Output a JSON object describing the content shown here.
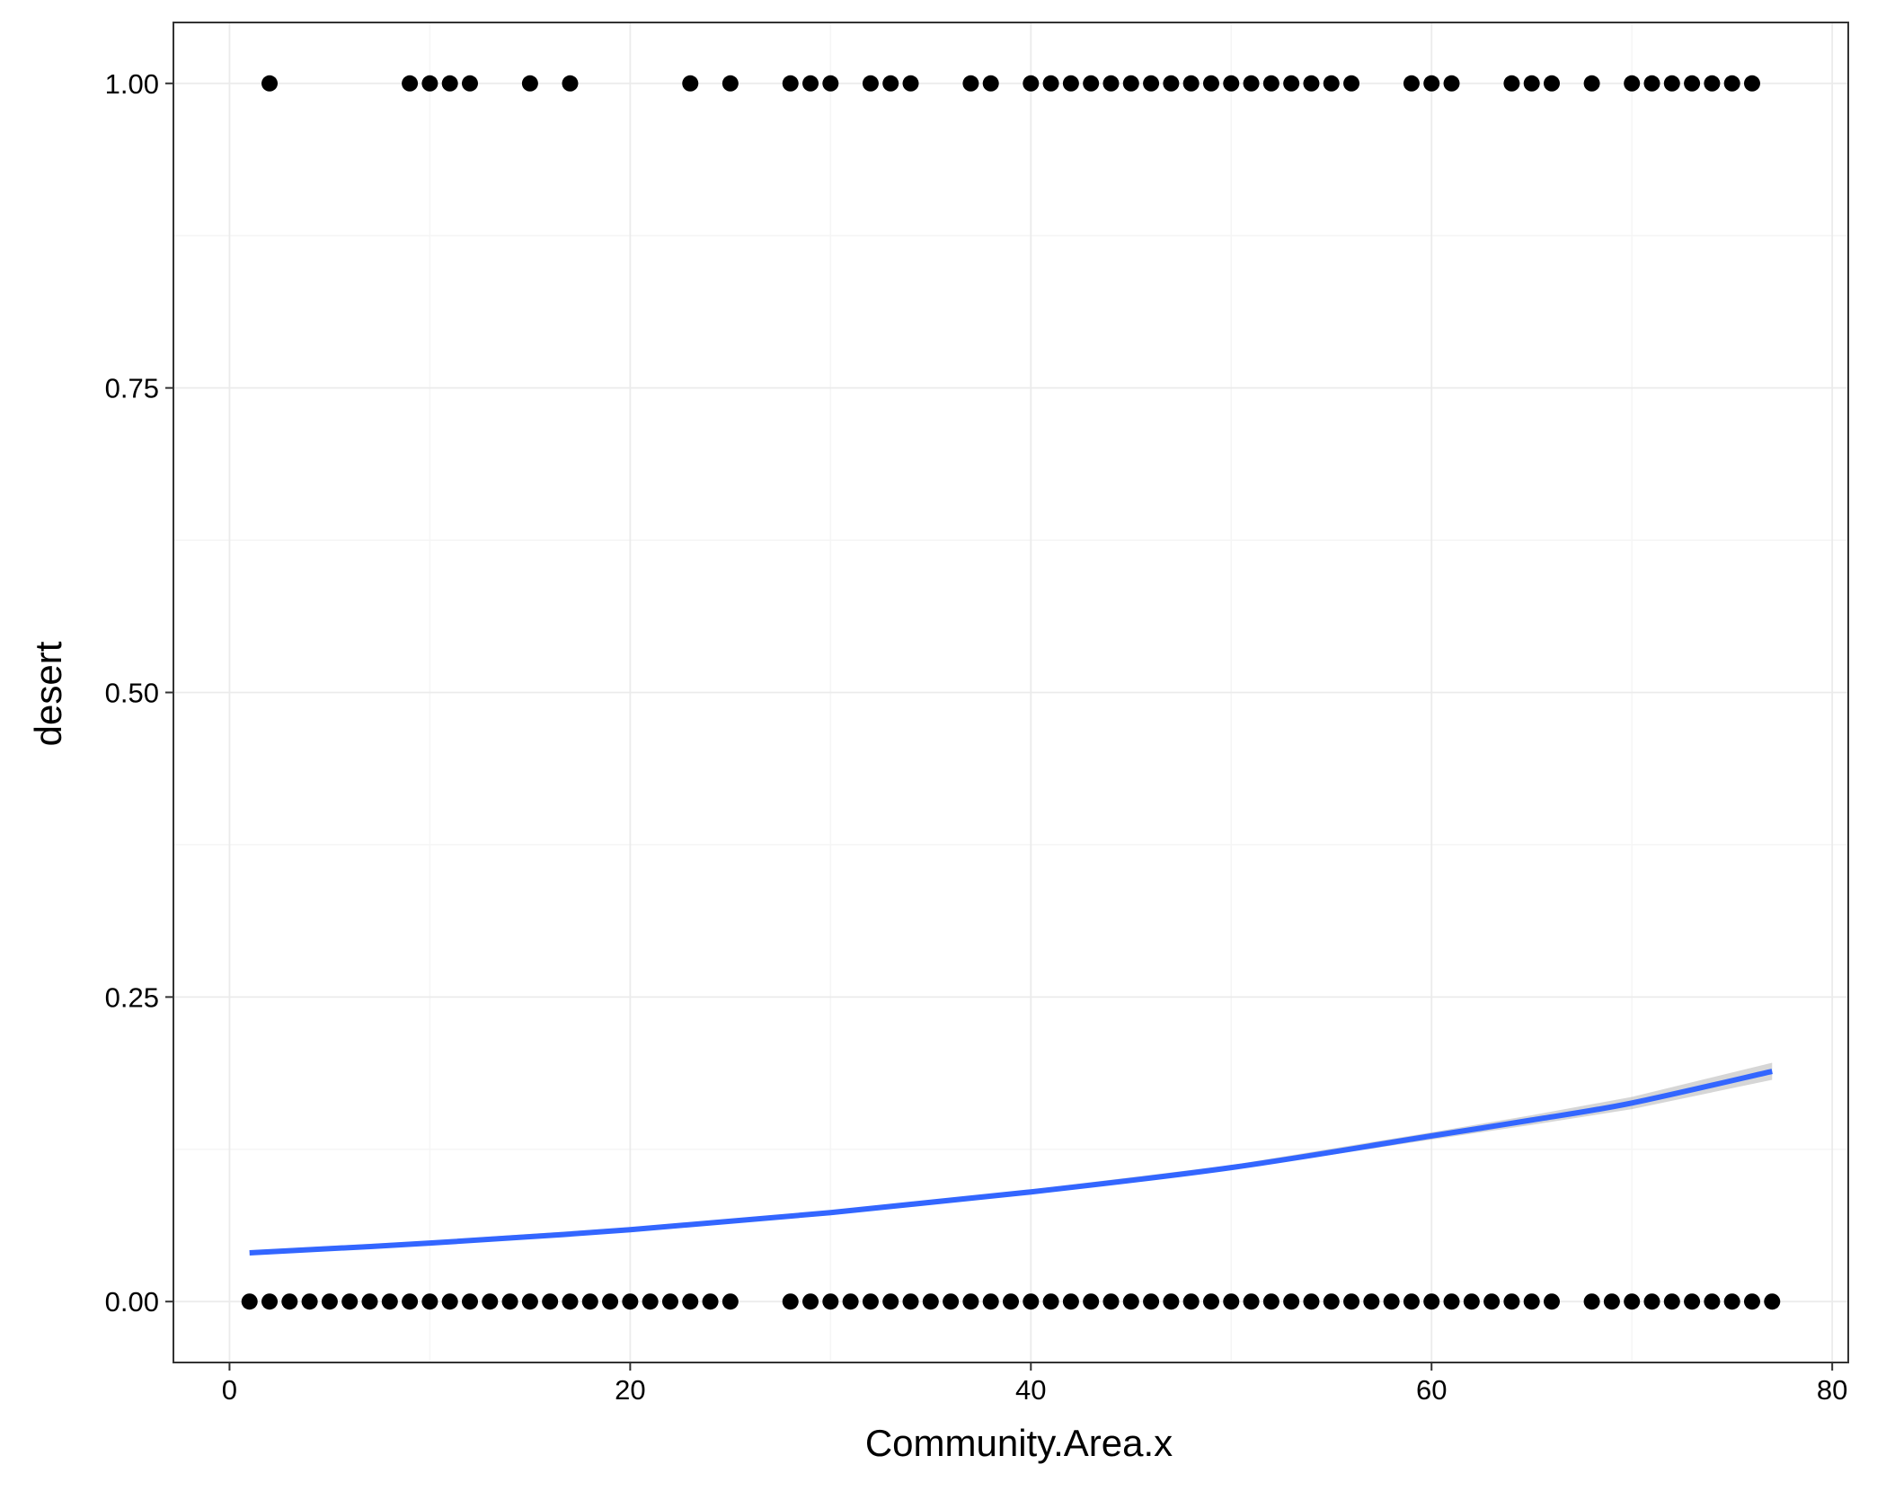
{
  "chart_data": {
    "type": "scatter",
    "xlabel": "Community.Area.x",
    "ylabel": "desert",
    "xlim": [
      -2.8,
      80.8
    ],
    "ylim": [
      -0.05,
      1.05
    ],
    "x_ticks": [
      0,
      20,
      40,
      60,
      80
    ],
    "x_tick_labels": [
      "0",
      "20",
      "40",
      "60",
      "80"
    ],
    "y_ticks": [
      0,
      0.25,
      0.5,
      0.75,
      1.0
    ],
    "y_tick_labels": [
      "0.00",
      "0.25",
      "0.50",
      "0.75",
      "1.00"
    ],
    "grid": true,
    "series": [
      {
        "y": 1,
        "x": [
          2,
          9,
          10,
          11,
          12,
          15,
          17,
          23,
          25,
          28,
          29,
          30,
          32,
          33,
          34,
          37,
          38,
          40,
          41,
          42,
          43,
          44,
          45,
          46,
          47,
          48,
          49,
          50,
          51,
          52,
          53,
          54,
          55,
          56,
          59,
          60,
          61,
          64,
          65,
          66,
          68,
          70,
          71,
          72,
          73,
          74,
          75,
          76
        ]
      },
      {
        "y": 0,
        "x": [
          1,
          2,
          3,
          4,
          5,
          6,
          7,
          8,
          9,
          10,
          11,
          12,
          13,
          14,
          15,
          16,
          17,
          18,
          19,
          20,
          21,
          22,
          23,
          24,
          25,
          28,
          29,
          30,
          31,
          32,
          33,
          34,
          35,
          36,
          37,
          38,
          39,
          40,
          41,
          42,
          43,
          44,
          45,
          46,
          47,
          48,
          49,
          50,
          51,
          52,
          53,
          54,
          55,
          56,
          57,
          58,
          59,
          60,
          61,
          62,
          63,
          64,
          65,
          66,
          68,
          69,
          70,
          71,
          72,
          73,
          74,
          75,
          76,
          77
        ]
      }
    ],
    "fit": {
      "kind": "logistic",
      "x": [
        1,
        10,
        20,
        30,
        40,
        50,
        60,
        65,
        70,
        77
      ],
      "y": [
        0.04,
        0.048,
        0.059,
        0.073,
        0.09,
        0.11,
        0.136,
        0.149,
        0.163,
        0.189
      ],
      "se_half_width": [
        0.002,
        0.002,
        0.002,
        0.002,
        0.002,
        0.002,
        0.003,
        0.004,
        0.005,
        0.007
      ]
    },
    "colors": {
      "points": "#000000",
      "fit_line": "#3366FF",
      "ribbon": "#999999",
      "grid_major": "#EBEBEB",
      "grid_minor": "#F5F5F5",
      "panel_border": "#333333"
    }
  }
}
